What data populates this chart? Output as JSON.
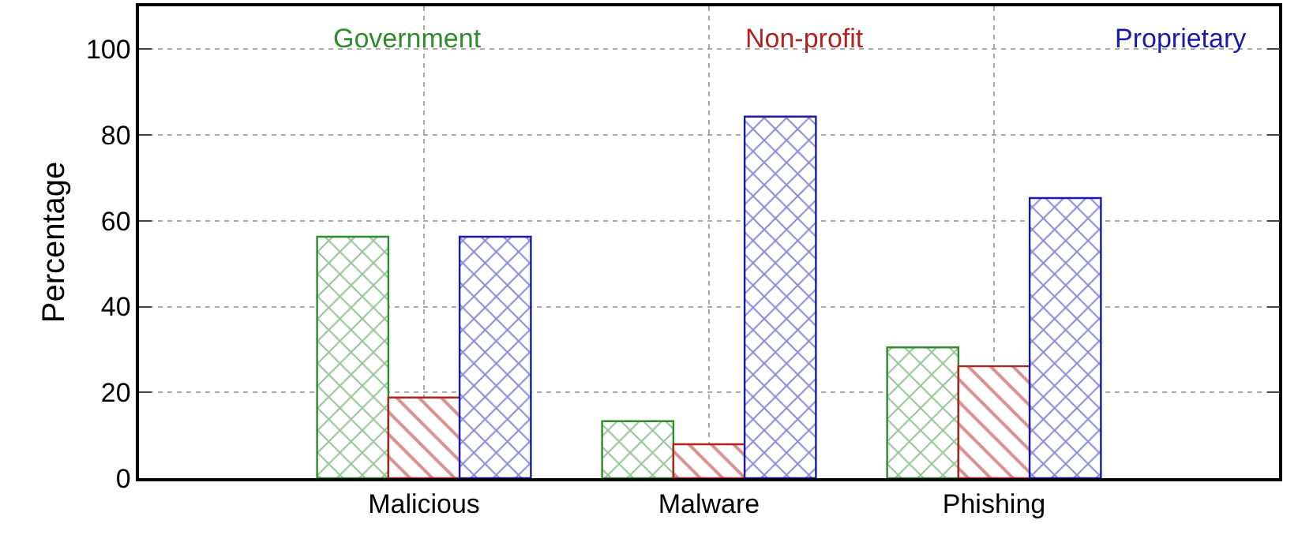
{
  "chart_data": {
    "type": "bar",
    "ylabel": "Percentage",
    "categories": [
      "Malicious",
      "Malware",
      "Phishing"
    ],
    "series": [
      {
        "name": "Government",
        "color": "#2e8b2e",
        "values": [
          56.3,
          13.3,
          30.5
        ]
      },
      {
        "name": "Non-profit",
        "color": "#b22222",
        "values": [
          18.8,
          7.9,
          26.1
        ]
      },
      {
        "name": "Proprietary",
        "color": "#1a1aaa",
        "values": [
          56.3,
          84.3,
          65.3
        ]
      }
    ],
    "ylim": [
      0,
      110
    ],
    "yticks": [
      0,
      20,
      40,
      60,
      80,
      100
    ],
    "grid": true,
    "legend": "top"
  }
}
